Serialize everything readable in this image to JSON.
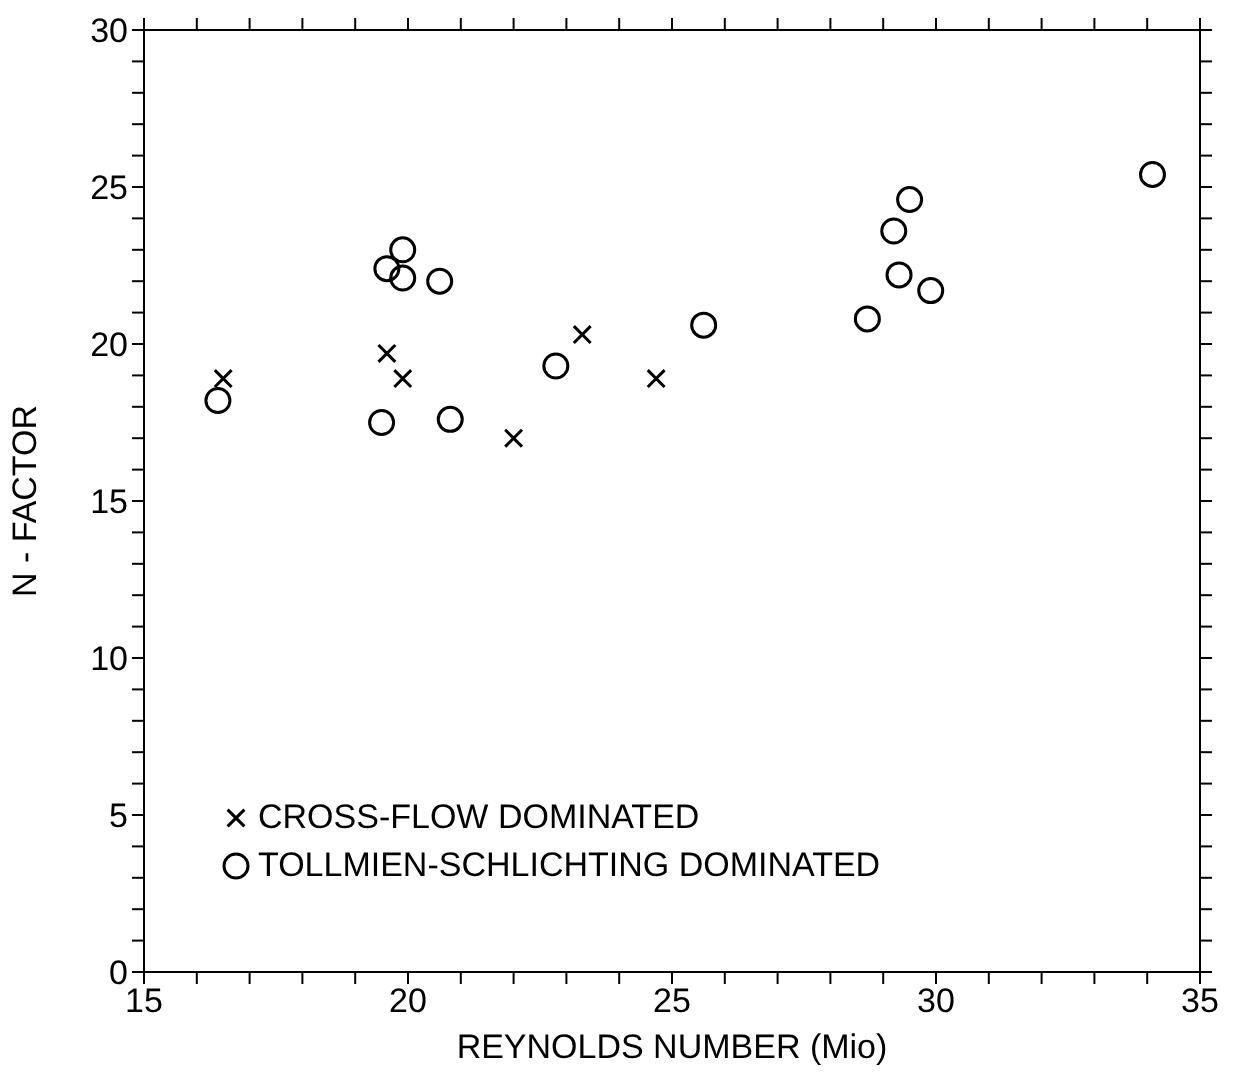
{
  "chart_data": {
    "type": "scatter",
    "xlabel": "REYNOLDS NUMBER (Mio)",
    "ylabel": "N - FACTOR",
    "xlim": [
      15,
      35
    ],
    "ylim": [
      0,
      30
    ],
    "xticks": [
      15,
      {
        "value": 16,
        "label": null
      },
      {
        "value": 17,
        "label": null
      },
      {
        "value": 18,
        "label": null
      },
      {
        "value": 19,
        "label": null
      },
      20,
      {
        "value": 21,
        "label": null
      },
      {
        "value": 22,
        "label": null
      },
      {
        "value": 23,
        "label": null
      },
      {
        "value": 24,
        "label": null
      },
      25,
      {
        "value": 26,
        "label": null
      },
      {
        "value": 27,
        "label": null
      },
      {
        "value": 28,
        "label": null
      },
      {
        "value": 29,
        "label": null
      },
      30,
      {
        "value": 31,
        "label": null
      },
      {
        "value": 32,
        "label": null
      },
      {
        "value": 33,
        "label": null
      },
      {
        "value": 34,
        "label": null
      },
      35
    ],
    "yticks": [
      0,
      {
        "value": 1,
        "label": null
      },
      {
        "value": 2,
        "label": null
      },
      {
        "value": 3,
        "label": null
      },
      {
        "value": 4,
        "label": null
      },
      5,
      {
        "value": 6,
        "label": null
      },
      {
        "value": 7,
        "label": null
      },
      {
        "value": 8,
        "label": null
      },
      {
        "value": 9,
        "label": null
      },
      10,
      {
        "value": 11,
        "label": null
      },
      {
        "value": 12,
        "label": null
      },
      {
        "value": 13,
        "label": null
      },
      {
        "value": 14,
        "label": null
      },
      15,
      {
        "value": 16,
        "label": null
      },
      {
        "value": 17,
        "label": null
      },
      {
        "value": 18,
        "label": null
      },
      {
        "value": 19,
        "label": null
      },
      20,
      {
        "value": 21,
        "label": null
      },
      {
        "value": 22,
        "label": null
      },
      {
        "value": 23,
        "label": null
      },
      {
        "value": 24,
        "label": null
      },
      25,
      {
        "value": 26,
        "label": null
      },
      {
        "value": 27,
        "label": null
      },
      {
        "value": 28,
        "label": null
      },
      {
        "value": 29,
        "label": null
      },
      30
    ],
    "legend": "bottom left",
    "series": [
      {
        "name": "CROSS-FLOW DOMINATED",
        "color": "#000000",
        "marker": "cross",
        "x": [
          16.5,
          19.6,
          19.9,
          22.0,
          23.3,
          24.7
        ],
        "values": [
          18.9,
          19.7,
          18.9,
          17.0,
          20.3,
          18.9
        ]
      },
      {
        "name": "TOLLMIEN-SCHLICHTING DOMINATED",
        "color": "#000000",
        "marker": "circle",
        "x": [
          16.4,
          19.6,
          19.9,
          19.9,
          20.6,
          19.5,
          20.8,
          22.8,
          25.6,
          28.7,
          29.2,
          29.5,
          29.3,
          29.9,
          34.1
        ],
        "values": [
          18.2,
          22.4,
          23.0,
          22.1,
          22.0,
          17.5,
          17.6,
          19.3,
          20.6,
          20.8,
          23.6,
          24.6,
          22.2,
          21.7,
          25.4
        ]
      }
    ]
  }
}
